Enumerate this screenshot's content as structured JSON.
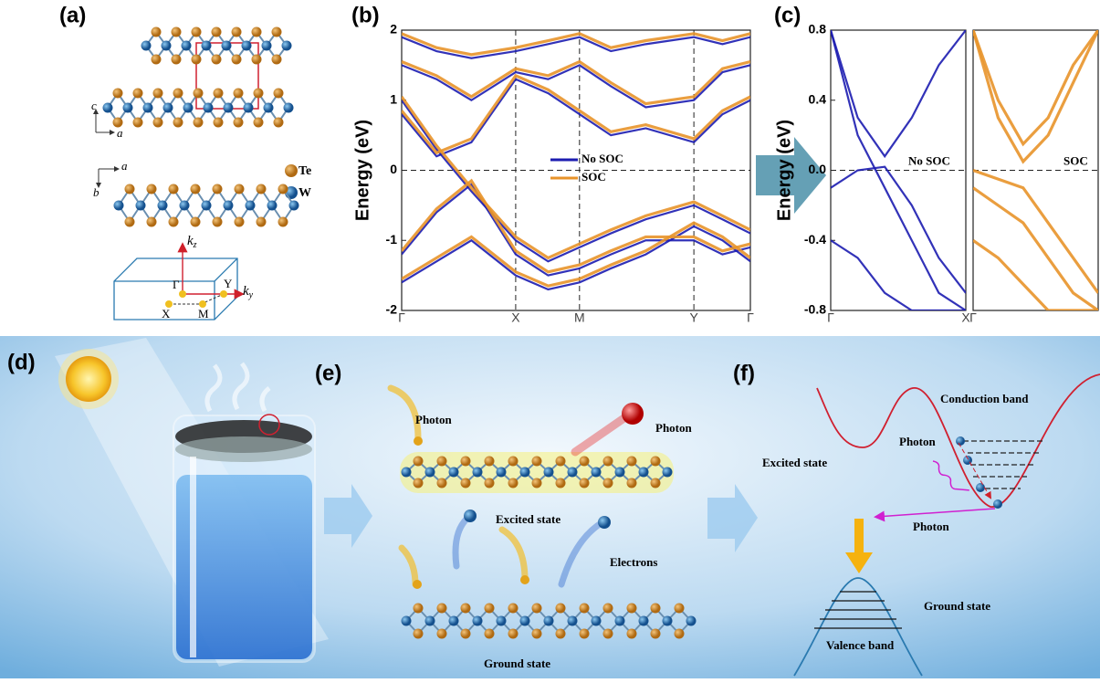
{
  "panel_labels": [
    "(a)",
    "(b)",
    "(c)",
    "(d)",
    "(e)",
    "(f)"
  ],
  "panel_a": {
    "axes_top": {
      "vertical": "c",
      "horizontal": "a"
    },
    "axes_mid": {
      "horizontal": "a",
      "vertical": "b"
    },
    "legend": [
      {
        "label": "Te",
        "color": "#c8862a"
      },
      {
        "label": "W",
        "color": "#2a78b8"
      }
    ],
    "bz": {
      "kz": {
        "base": "k",
        "sub": "z"
      },
      "ky": {
        "base": "k",
        "sub": "y"
      },
      "points": [
        "Γ",
        "Y",
        "X",
        "M"
      ]
    }
  },
  "chart_data": [
    {
      "type": "line",
      "y_label": "Energy (eV)",
      "x": [
        0,
        0.1,
        0.2,
        0.327,
        0.42,
        0.51,
        0.6,
        0.7,
        0.838,
        0.92,
        1
      ],
      "xlim": [
        0,
        1
      ],
      "xticks": [
        {
          "value": 0,
          "label": "Γ"
        },
        {
          "value": 0.327,
          "label": "X"
        },
        {
          "value": 0.51,
          "label": "M"
        },
        {
          "value": 0.838,
          "label": "Y"
        },
        {
          "value": 1,
          "label": "Γ"
        }
      ],
      "ylim": [
        -2,
        2
      ],
      "yticks": [
        -2,
        -1,
        0,
        1,
        2
      ],
      "series": [
        {
          "name": "No SOC",
          "color": "#1c1cb0",
          "bands": [
            [
              -1.6,
              -1.3,
              -1.0,
              -1.5,
              -1.7,
              -1.6,
              -1.4,
              -1.2,
              -0.8,
              -1.0,
              -1.3
            ],
            [
              -1.2,
              -0.6,
              -0.2,
              -1.2,
              -1.5,
              -1.4,
              -1.2,
              -1.0,
              -1.0,
              -1.2,
              -1.1
            ],
            [
              1.0,
              0.3,
              -0.3,
              -1.0,
              -1.3,
              -1.1,
              -0.9,
              -0.7,
              -0.5,
              -0.7,
              -0.9
            ],
            [
              0.8,
              0.2,
              0.4,
              1.3,
              1.1,
              0.8,
              0.5,
              0.6,
              0.4,
              0.8,
              1.0
            ],
            [
              1.5,
              1.3,
              1.0,
              1.4,
              1.3,
              1.5,
              1.2,
              0.9,
              1.0,
              1.4,
              1.5
            ],
            [
              1.9,
              1.7,
              1.6,
              1.7,
              1.8,
              1.9,
              1.7,
              1.8,
              1.9,
              1.8,
              1.9
            ]
          ]
        },
        {
          "name": "SOC",
          "color": "#e8932a",
          "bands": [
            [
              -1.55,
              -1.25,
              -0.95,
              -1.45,
              -1.65,
              -1.55,
              -1.35,
              -1.15,
              -0.75,
              -0.95,
              -1.25
            ],
            [
              -1.15,
              -0.55,
              -0.15,
              -1.15,
              -1.45,
              -1.35,
              -1.15,
              -0.95,
              -0.95,
              -1.15,
              -1.05
            ],
            [
              1.05,
              0.35,
              -0.25,
              -0.95,
              -1.25,
              -1.05,
              -0.85,
              -0.65,
              -0.45,
              -0.65,
              -0.85
            ],
            [
              0.85,
              0.25,
              0.45,
              1.35,
              1.15,
              0.85,
              0.55,
              0.65,
              0.45,
              0.85,
              1.05
            ],
            [
              1.55,
              1.35,
              1.05,
              1.45,
              1.35,
              1.55,
              1.25,
              0.95,
              1.05,
              1.45,
              1.55
            ],
            [
              1.95,
              1.75,
              1.65,
              1.75,
              1.85,
              1.95,
              1.75,
              1.85,
              1.95,
              1.85,
              1.95
            ]
          ]
        }
      ]
    },
    {
      "type": "line",
      "y_label": "Energy (eV)",
      "annotation": "No SOC",
      "x": [
        0,
        0.2,
        0.4,
        0.6,
        0.8,
        1
      ],
      "xlim": [
        0,
        1
      ],
      "xticks": [
        {
          "value": 0,
          "label": "Γ"
        },
        {
          "value": 1,
          "label": "X"
        }
      ],
      "ylim": [
        -0.8,
        0.8
      ],
      "yticks": [
        -0.8,
        -0.4,
        {
          "value": 0,
          "label": "0.0"
        },
        0.4,
        0.8
      ],
      "series": [
        {
          "color": "#1c1cb0",
          "bands": [
            [
              0.8,
              0.3,
              0.08,
              0.3,
              0.6,
              0.8
            ],
            [
              0.8,
              0.2,
              -0.1,
              -0.4,
              -0.7,
              -0.8
            ],
            [
              -0.1,
              0.0,
              0.02,
              -0.2,
              -0.5,
              -0.7
            ],
            [
              -0.4,
              -0.5,
              -0.7,
              -0.8,
              -0.8,
              -0.8
            ]
          ]
        }
      ]
    },
    {
      "type": "line",
      "annotation": "SOC",
      "x": [
        0,
        0.2,
        0.4,
        0.6,
        0.8,
        1
      ],
      "xlim": [
        0,
        1
      ],
      "xticks": [
        {
          "value": 0,
          "label": "Γ"
        }
      ],
      "ylim": [
        -0.8,
        0.8
      ],
      "series": [
        {
          "color": "#e8932a",
          "bands": [
            [
              0.8,
              0.4,
              0.15,
              0.3,
              0.6,
              0.8
            ],
            [
              0.8,
              0.3,
              0.05,
              0.2,
              0.5,
              0.8
            ],
            [
              0.0,
              -0.05,
              -0.1,
              -0.3,
              -0.5,
              -0.7
            ],
            [
              -0.1,
              -0.2,
              -0.3,
              -0.5,
              -0.7,
              -0.8
            ],
            [
              -0.4,
              -0.5,
              -0.65,
              -0.8,
              -0.8,
              -0.8
            ]
          ]
        }
      ]
    }
  ],
  "panel_e": {
    "photon_1": "Photon",
    "photon_2": "Photon",
    "excited": "Excited state",
    "electrons": "Electrons",
    "ground": "Ground state"
  },
  "panel_f": {
    "conduction": "Conduction band",
    "photon_1": "Photon",
    "excited": "Excited state",
    "photon_2": "Photon",
    "ground": "Ground state",
    "valence": "Valence band"
  }
}
